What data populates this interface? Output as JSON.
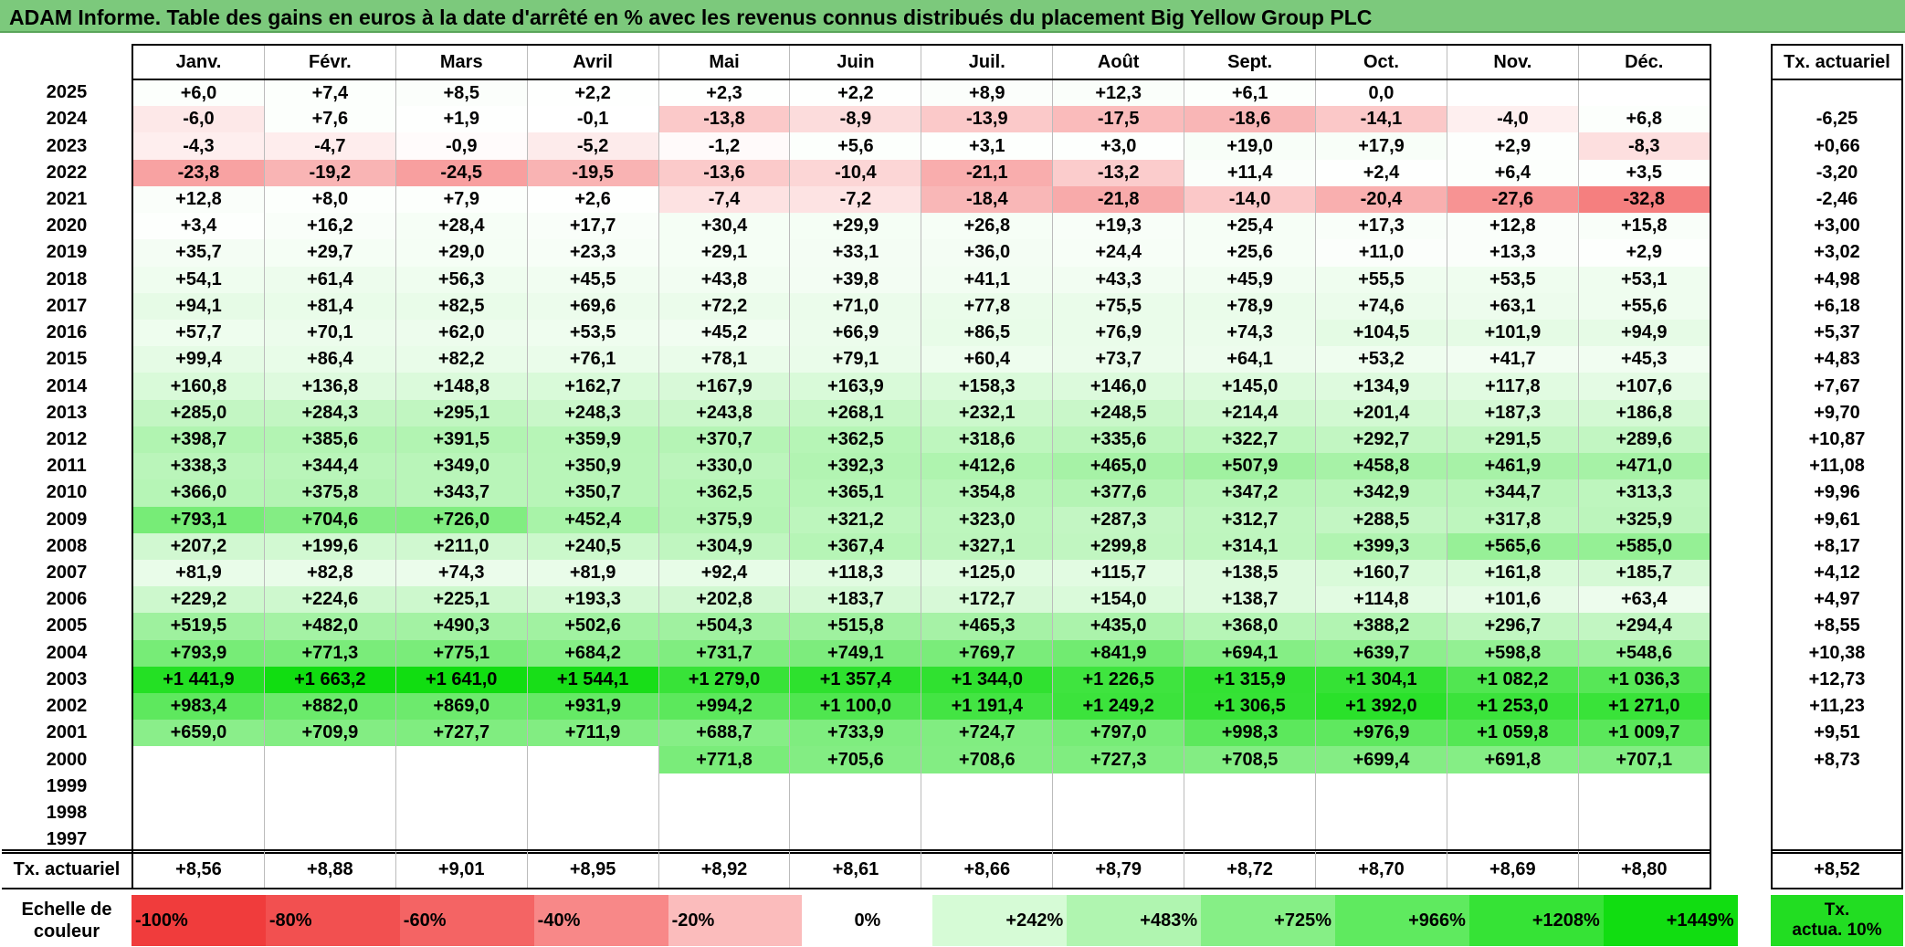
{
  "title": "ADAM Informe. Table des gains en euros à la date d'arrêté en % avec les revenus connus distribués du placement Big Yellow Group PLC",
  "months": [
    "Janv.",
    "Févr.",
    "Mars",
    "Avril",
    "Mai",
    "Juin",
    "Juil.",
    "Août",
    "Sept.",
    "Oct.",
    "Nov.",
    "Déc."
  ],
  "tx_header": "Tx. actuariel",
  "rows": [
    {
      "year": "2025",
      "values": [
        "+6,0",
        "+7,4",
        "+8,5",
        "+2,2",
        "+2,3",
        "+2,2",
        "+8,9",
        "+12,3",
        "+6,1",
        "0,0",
        "",
        ""
      ],
      "tx": ""
    },
    {
      "year": "2024",
      "values": [
        "-6,0",
        "+7,6",
        "+1,9",
        "-0,1",
        "-13,8",
        "-8,9",
        "-13,9",
        "-17,5",
        "-18,6",
        "-14,1",
        "-4,0",
        "+6,8"
      ],
      "tx": "-6,25"
    },
    {
      "year": "2023",
      "values": [
        "-4,3",
        "-4,7",
        "-0,9",
        "-5,2",
        "-1,2",
        "+5,6",
        "+3,1",
        "+3,0",
        "+19,0",
        "+17,9",
        "+2,9",
        "-8,3"
      ],
      "tx": "+0,66"
    },
    {
      "year": "2022",
      "values": [
        "-23,8",
        "-19,2",
        "-24,5",
        "-19,5",
        "-13,6",
        "-10,4",
        "-21,1",
        "-13,2",
        "+11,4",
        "+2,4",
        "+6,4",
        "+3,5"
      ],
      "tx": "-3,20"
    },
    {
      "year": "2021",
      "values": [
        "+12,8",
        "+8,0",
        "+7,9",
        "+2,6",
        "-7,4",
        "-7,2",
        "-18,4",
        "-21,8",
        "-14,0",
        "-20,4",
        "-27,6",
        "-32,8"
      ],
      "tx": "-2,46"
    },
    {
      "year": "2020",
      "values": [
        "+3,4",
        "+16,2",
        "+28,4",
        "+17,7",
        "+30,4",
        "+29,9",
        "+26,8",
        "+19,3",
        "+25,4",
        "+17,3",
        "+12,8",
        "+15,8"
      ],
      "tx": "+3,00"
    },
    {
      "year": "2019",
      "values": [
        "+35,7",
        "+29,7",
        "+29,0",
        "+23,3",
        "+29,1",
        "+33,1",
        "+36,0",
        "+24,4",
        "+25,6",
        "+11,0",
        "+13,3",
        "+2,9"
      ],
      "tx": "+3,02"
    },
    {
      "year": "2018",
      "values": [
        "+54,1",
        "+61,4",
        "+56,3",
        "+45,5",
        "+43,8",
        "+39,8",
        "+41,1",
        "+43,3",
        "+45,9",
        "+55,5",
        "+53,5",
        "+53,1"
      ],
      "tx": "+4,98"
    },
    {
      "year": "2017",
      "values": [
        "+94,1",
        "+81,4",
        "+82,5",
        "+69,6",
        "+72,2",
        "+71,0",
        "+77,8",
        "+75,5",
        "+78,9",
        "+74,6",
        "+63,1",
        "+55,6"
      ],
      "tx": "+6,18"
    },
    {
      "year": "2016",
      "values": [
        "+57,7",
        "+70,1",
        "+62,0",
        "+53,5",
        "+45,2",
        "+66,9",
        "+86,5",
        "+76,9",
        "+74,3",
        "+104,5",
        "+101,9",
        "+94,9"
      ],
      "tx": "+5,37"
    },
    {
      "year": "2015",
      "values": [
        "+99,4",
        "+86,4",
        "+82,2",
        "+76,1",
        "+78,1",
        "+79,1",
        "+60,4",
        "+73,7",
        "+64,1",
        "+53,2",
        "+41,7",
        "+45,3"
      ],
      "tx": "+4,83"
    },
    {
      "year": "2014",
      "values": [
        "+160,8",
        "+136,8",
        "+148,8",
        "+162,7",
        "+167,9",
        "+163,9",
        "+158,3",
        "+146,0",
        "+145,0",
        "+134,9",
        "+117,8",
        "+107,6"
      ],
      "tx": "+7,67"
    },
    {
      "year": "2013",
      "values": [
        "+285,0",
        "+284,3",
        "+295,1",
        "+248,3",
        "+243,8",
        "+268,1",
        "+232,1",
        "+248,5",
        "+214,4",
        "+201,4",
        "+187,3",
        "+186,8"
      ],
      "tx": "+9,70"
    },
    {
      "year": "2012",
      "values": [
        "+398,7",
        "+385,6",
        "+391,5",
        "+359,9",
        "+370,7",
        "+362,5",
        "+318,6",
        "+335,6",
        "+322,7",
        "+292,7",
        "+291,5",
        "+289,6"
      ],
      "tx": "+10,87"
    },
    {
      "year": "2011",
      "values": [
        "+338,3",
        "+344,4",
        "+349,0",
        "+350,9",
        "+330,0",
        "+392,3",
        "+412,6",
        "+465,0",
        "+507,9",
        "+458,8",
        "+461,9",
        "+471,0"
      ],
      "tx": "+11,08"
    },
    {
      "year": "2010",
      "values": [
        "+366,0",
        "+375,8",
        "+343,7",
        "+350,7",
        "+362,5",
        "+365,1",
        "+354,8",
        "+377,6",
        "+347,2",
        "+342,9",
        "+344,7",
        "+313,3"
      ],
      "tx": "+9,96"
    },
    {
      "year": "2009",
      "values": [
        "+793,1",
        "+704,6",
        "+726,0",
        "+452,4",
        "+375,9",
        "+321,2",
        "+323,0",
        "+287,3",
        "+312,7",
        "+288,5",
        "+317,8",
        "+325,9"
      ],
      "tx": "+9,61"
    },
    {
      "year": "2008",
      "values": [
        "+207,2",
        "+199,6",
        "+211,0",
        "+240,5",
        "+304,9",
        "+367,4",
        "+327,1",
        "+299,8",
        "+314,1",
        "+399,3",
        "+565,6",
        "+585,0"
      ],
      "tx": "+8,17"
    },
    {
      "year": "2007",
      "values": [
        "+81,9",
        "+82,8",
        "+74,3",
        "+81,9",
        "+92,4",
        "+118,3",
        "+125,0",
        "+115,7",
        "+138,5",
        "+160,7",
        "+161,8",
        "+185,7"
      ],
      "tx": "+4,12"
    },
    {
      "year": "2006",
      "values": [
        "+229,2",
        "+224,6",
        "+225,1",
        "+193,3",
        "+202,8",
        "+183,7",
        "+172,7",
        "+154,0",
        "+138,7",
        "+114,8",
        "+101,6",
        "+63,4"
      ],
      "tx": "+4,97"
    },
    {
      "year": "2005",
      "values": [
        "+519,5",
        "+482,0",
        "+490,3",
        "+502,6",
        "+504,3",
        "+515,8",
        "+465,3",
        "+435,0",
        "+368,0",
        "+388,2",
        "+296,7",
        "+294,4"
      ],
      "tx": "+8,55"
    },
    {
      "year": "2004",
      "values": [
        "+793,9",
        "+771,3",
        "+775,1",
        "+684,2",
        "+731,7",
        "+749,1",
        "+769,7",
        "+841,9",
        "+694,1",
        "+639,7",
        "+598,8",
        "+548,6"
      ],
      "tx": "+10,38"
    },
    {
      "year": "2003",
      "values": [
        "+1 441,9",
        "+1 663,2",
        "+1 641,0",
        "+1 544,1",
        "+1 279,0",
        "+1 357,4",
        "+1 344,0",
        "+1 226,5",
        "+1 315,9",
        "+1 304,1",
        "+1 082,2",
        "+1 036,3"
      ],
      "tx": "+12,73"
    },
    {
      "year": "2002",
      "values": [
        "+983,4",
        "+882,0",
        "+869,0",
        "+931,9",
        "+994,2",
        "+1 100,0",
        "+1 191,4",
        "+1 249,2",
        "+1 306,5",
        "+1 392,0",
        "+1 253,0",
        "+1 271,0"
      ],
      "tx": "+11,23"
    },
    {
      "year": "2001",
      "values": [
        "+659,0",
        "+709,9",
        "+727,7",
        "+711,9",
        "+688,7",
        "+733,9",
        "+724,7",
        "+797,0",
        "+998,3",
        "+976,9",
        "+1 059,8",
        "+1 009,7"
      ],
      "tx": "+9,51"
    },
    {
      "year": "2000",
      "values": [
        "",
        "",
        "",
        "",
        "+771,8",
        "+705,6",
        "+708,6",
        "+727,3",
        "+708,5",
        "+699,4",
        "+691,8",
        "+707,1"
      ],
      "tx": "+8,73"
    },
    {
      "year": "1999",
      "values": [
        "",
        "",
        "",
        "",
        "",
        "",
        "",
        "",
        "",
        "",
        "",
        ""
      ],
      "tx": ""
    },
    {
      "year": "1998",
      "values": [
        "",
        "",
        "",
        "",
        "",
        "",
        "",
        "",
        "",
        "",
        "",
        ""
      ],
      "tx": ""
    },
    {
      "year": "1997",
      "values": [
        "",
        "",
        "",
        "",
        "",
        "",
        "",
        "",
        "",
        "",
        "",
        ""
      ],
      "tx": ""
    }
  ],
  "summary": {
    "label": "Tx. actuariel",
    "values": [
      "+8,56",
      "+8,88",
      "+9,01",
      "+8,95",
      "+8,92",
      "+8,61",
      "+8,66",
      "+8,79",
      "+8,72",
      "+8,70",
      "+8,69",
      "+8,80"
    ],
    "total": "+8,52"
  },
  "scale": {
    "label_line1": "Echelle de",
    "label_line2": "couleur",
    "items": [
      {
        "label": "-100%",
        "color": "#f03c3c",
        "align": "left"
      },
      {
        "label": "-80%",
        "color": "#f25050",
        "align": "left"
      },
      {
        "label": "-60%",
        "color": "#f46464",
        "align": "left"
      },
      {
        "label": "-40%",
        "color": "#f88888",
        "align": "left"
      },
      {
        "label": "-20%",
        "color": "#fbbcbc",
        "align": "left"
      },
      {
        "label": "0%",
        "color": "#ffffff",
        "align": "center"
      },
      {
        "label": "+242%",
        "color": "#d6fbd6",
        "align": "right"
      },
      {
        "label": "+483%",
        "color": "#b0f5b0",
        "align": "right"
      },
      {
        "label": "+725%",
        "color": "#86ef86",
        "align": "right"
      },
      {
        "label": "+966%",
        "color": "#5fea5f",
        "align": "right"
      },
      {
        "label": "+1208%",
        "color": "#36e336",
        "align": "right"
      },
      {
        "label": "+1449%",
        "color": "#11dd11",
        "align": "right"
      }
    ],
    "tx_line1": "Tx.",
    "tx_line2": "actua. 10%",
    "tx_color": "#22dd22"
  },
  "colors": {
    "title_bar": "#7cc97c",
    "negative_max": "#f03c3c",
    "positive_max": "#11dd11",
    "neutral": "#ffffff"
  }
}
